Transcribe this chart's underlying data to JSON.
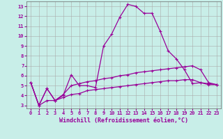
{
  "xlabel": "Windchill (Refroidissement éolien,°C)",
  "background_color": "#c8eee8",
  "grid_color": "#aaaaaa",
  "line_color": "#990099",
  "x_ticks": [
    0,
    1,
    2,
    3,
    4,
    5,
    6,
    7,
    8,
    9,
    10,
    11,
    12,
    13,
    14,
    15,
    16,
    17,
    18,
    19,
    20,
    21,
    22,
    23
  ],
  "y_ticks": [
    3,
    4,
    5,
    6,
    7,
    8,
    9,
    10,
    11,
    12,
    13
  ],
  "ylim": [
    2.7,
    13.5
  ],
  "xlim": [
    -0.5,
    23.5
  ],
  "line1_x": [
    0,
    1,
    2,
    3,
    4,
    5,
    6,
    7,
    8,
    9,
    10,
    11,
    12,
    13,
    14,
    15,
    16,
    17,
    18,
    19,
    20,
    21,
    22,
    23
  ],
  "line1_y": [
    5.3,
    3.0,
    4.7,
    3.5,
    4.0,
    6.1,
    5.0,
    5.0,
    4.8,
    9.0,
    10.2,
    11.9,
    13.2,
    13.0,
    12.3,
    12.3,
    10.5,
    8.5,
    7.7,
    6.6,
    5.2,
    5.3,
    5.2,
    5.1
  ],
  "line2_x": [
    0,
    1,
    2,
    3,
    4,
    5,
    6,
    7,
    8,
    9,
    10,
    11,
    12,
    13,
    14,
    15,
    16,
    17,
    18,
    19,
    20,
    21,
    22,
    23
  ],
  "line2_y": [
    5.3,
    3.0,
    4.7,
    3.5,
    4.1,
    5.0,
    5.2,
    5.4,
    5.5,
    5.7,
    5.8,
    6.0,
    6.1,
    6.3,
    6.4,
    6.5,
    6.6,
    6.7,
    6.8,
    6.9,
    7.0,
    6.6,
    5.3,
    5.1
  ],
  "line3_x": [
    0,
    1,
    2,
    3,
    4,
    5,
    6,
    7,
    8,
    9,
    10,
    11,
    12,
    13,
    14,
    15,
    16,
    17,
    18,
    19,
    20,
    21,
    22,
    23
  ],
  "line3_y": [
    5.3,
    3.0,
    3.5,
    3.5,
    3.8,
    4.1,
    4.2,
    4.5,
    4.6,
    4.7,
    4.8,
    4.9,
    5.0,
    5.1,
    5.2,
    5.3,
    5.4,
    5.5,
    5.5,
    5.6,
    5.6,
    5.3,
    5.1,
    5.1
  ],
  "marker": "+",
  "markersize": 3,
  "linewidth": 0.9,
  "tick_fontsize": 5,
  "xlabel_fontsize": 6
}
